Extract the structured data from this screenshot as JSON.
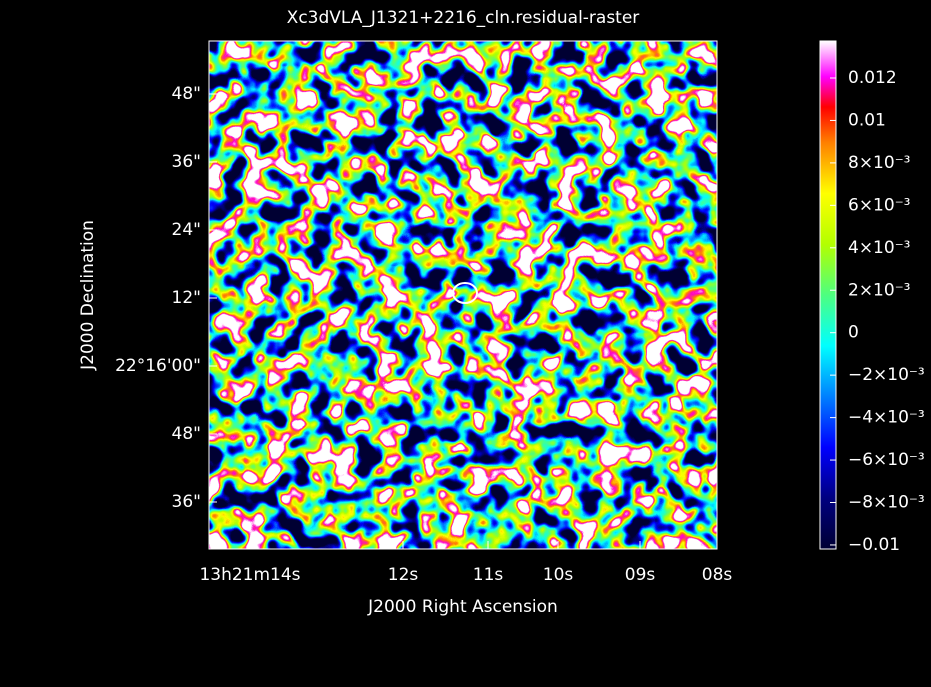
{
  "title": "Xc3dVLA_J1321+2216_cln.residual-raster",
  "x_axis": {
    "label": "J2000 Right Ascension",
    "ticks": [
      "13h21m14s",
      "12s",
      "11s",
      "10s",
      "09s",
      "08s"
    ]
  },
  "y_axis": {
    "label": "J2000 Declination",
    "ticks": [
      "48\"",
      "36\"",
      "24\"",
      "12\"",
      "22°16'00\"",
      "48\"",
      "36\""
    ]
  },
  "colorbar": {
    "ticks": [
      "0.012",
      "0.01",
      "8×10⁻³",
      "6×10⁻³",
      "4×10⁻³",
      "2×10⁻³",
      "0",
      "−2×10⁻³",
      "−4×10⁻³",
      "−6×10⁻³",
      "−8×10⁻³",
      "−0.01"
    ]
  }
}
